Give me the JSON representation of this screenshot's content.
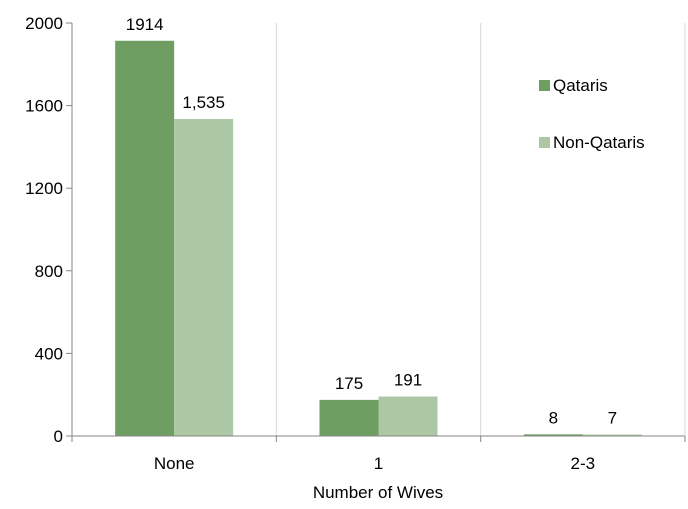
{
  "chart_data": {
    "type": "bar",
    "categories": [
      "None",
      "1",
      "2-3"
    ],
    "series": [
      {
        "name": "Qataris",
        "values": [
          1914,
          175,
          8
        ],
        "labels": [
          "1914",
          "175",
          "8"
        ],
        "color": "#6e9e62"
      },
      {
        "name": "Non-Qataris",
        "values": [
          1535,
          191,
          7
        ],
        "labels": [
          "1,535",
          "191",
          "7"
        ],
        "color": "#acc7a3"
      }
    ],
    "title": "",
    "xlabel": "Number of Wives",
    "ylabel": "",
    "ylim": [
      0,
      2000
    ],
    "yticks": [
      0,
      400,
      800,
      1200,
      1600,
      2000
    ],
    "grid": "vertical",
    "legend_position": "right"
  }
}
